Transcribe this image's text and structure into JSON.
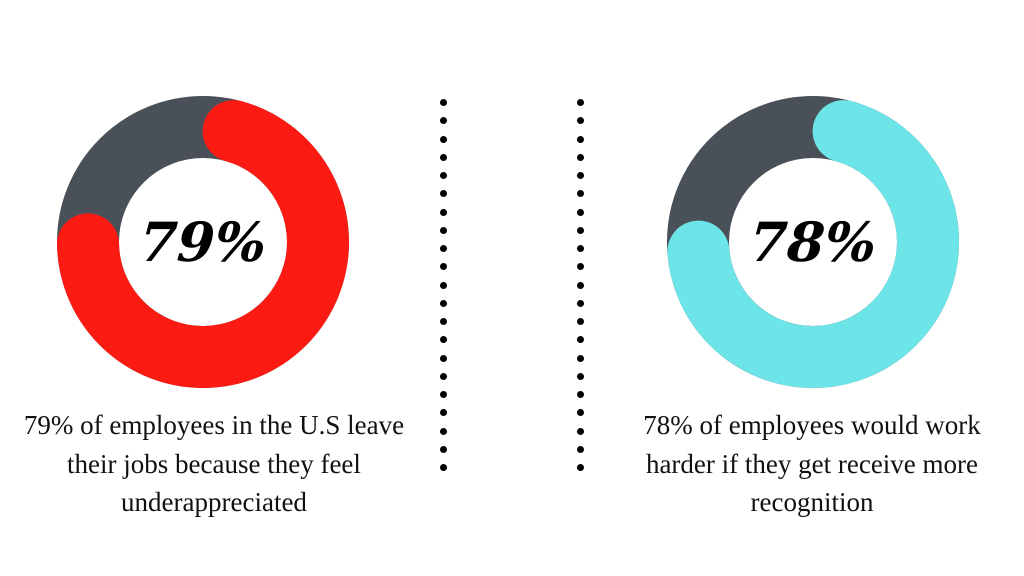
{
  "page": {
    "background_color": "#ffffff"
  },
  "divider": {
    "columns": 2,
    "dots_per_column": 21,
    "dot_color": "#000000"
  },
  "chart_data": [
    {
      "type": "donut",
      "value": 79,
      "max": 100,
      "percent_label": "79%",
      "arc_color": "#fc1b13",
      "track_color": "#4a5058",
      "caption": "79% of employees in the U.S leave their jobs because they feel underappreciated",
      "caption_lines": [
        "79% of employees in the U.S leave",
        "their jobs because they feel",
        "underappreciated"
      ]
    },
    {
      "type": "donut",
      "value": 78,
      "max": 100,
      "percent_label": "78%",
      "arc_color": "#6ce4e8",
      "track_color": "#4a5058",
      "caption": "78% of employees would work harder if they get receive more recognition",
      "caption_lines": [
        "78% of employees would work",
        "harder if they get receive more",
        "recognition"
      ]
    }
  ]
}
